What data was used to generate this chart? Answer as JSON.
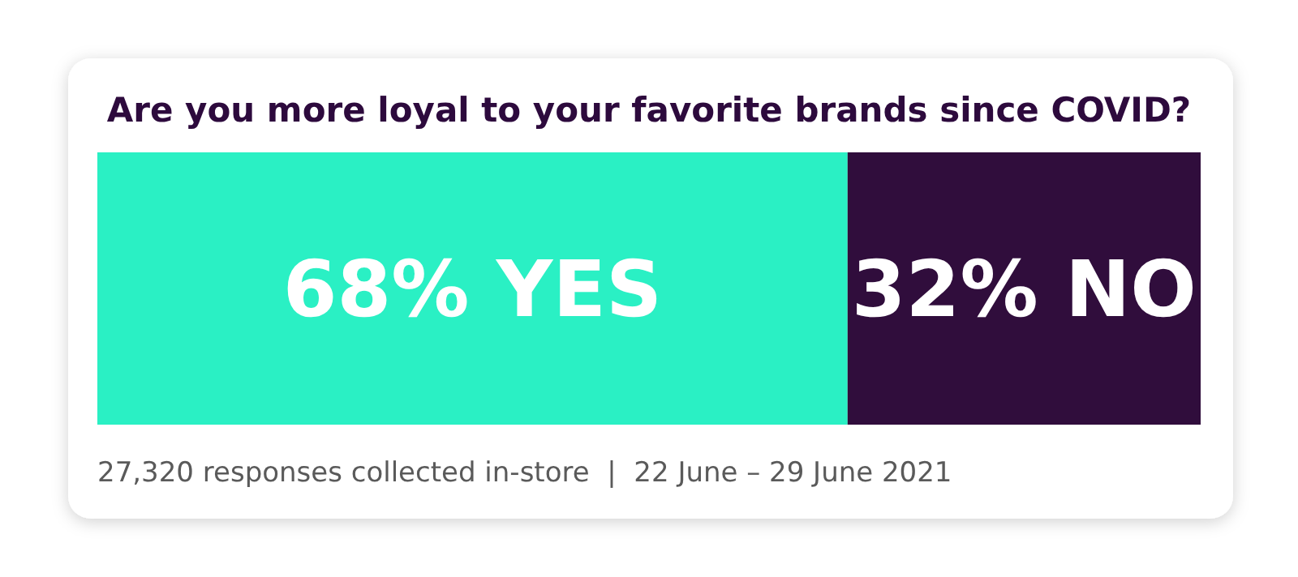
{
  "chart_data": {
    "type": "bar",
    "orientation": "horizontal",
    "stacked": true,
    "title": "Are you more loyal to your favorite brands since COVID?",
    "categories": [
      null
    ],
    "series": [
      {
        "color": "#2af0c4",
        "values": [
          68
        ],
        "value_labels": [
          "68% YES"
        ]
      },
      {
        "color": "#300d3c",
        "values": [
          32
        ],
        "value_labels": [
          "32% NO"
        ]
      }
    ],
    "xlim": [
      0,
      100
    ],
    "annotations": [
      "27,320 responses collected in-store  |  22 June – 29 June 2021"
    ]
  }
}
